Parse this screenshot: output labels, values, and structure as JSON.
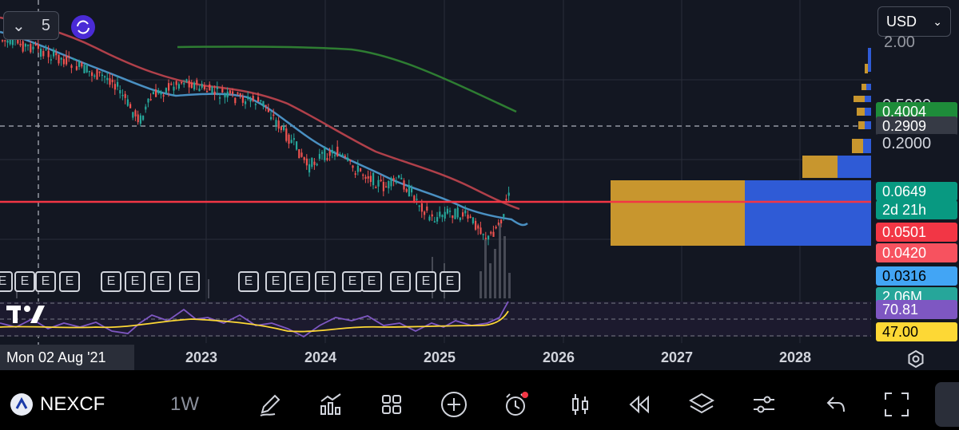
{
  "currency": {
    "label": "USD"
  },
  "indicators_collapse": {
    "count": "5"
  },
  "price_scale": {
    "top_label": "2.00",
    "labels": [
      {
        "text": "0.5000",
        "bg": "#131722",
        "color": "#d1d4dc"
      },
      {
        "text": "0.4004",
        "bg": "#1e8c3a",
        "color": "#ffffff"
      },
      {
        "text": "0.2909",
        "bg": "#363a45",
        "color": "#ffffff"
      },
      {
        "text": "0.2000",
        "bg": "#131722",
        "color": "#d1d4dc"
      },
      {
        "text": "0.0649",
        "bg": "#089981",
        "color": "#ffffff"
      },
      {
        "text": "2d 21h",
        "bg": "#089981",
        "color": "#ffffff"
      },
      {
        "text": "0.0501",
        "bg": "#f23645",
        "color": "#ffffff"
      },
      {
        "text": "0.0420",
        "bg": "#f7525f",
        "color": "#ffffff"
      },
      {
        "text": "0.0316",
        "bg": "#42a5f5",
        "color": "#000000"
      },
      {
        "text": "2.06M",
        "bg": "#26a69a",
        "color": "#ffffff"
      }
    ]
  },
  "rsi_scale": {
    "rsi_value": "70.81",
    "ma_value": "47.00",
    "rsi_color": "#7e57c2",
    "ma_color": "#fdd835"
  },
  "time_axis": {
    "cursor_date": "Mon 02 Aug '21",
    "years": [
      "2023",
      "2024",
      "2025",
      "2026",
      "2027",
      "2028"
    ]
  },
  "earnings_markers": {
    "label": "E",
    "count": 17
  },
  "toolbar": {
    "symbol": "NEXCF",
    "interval": "1W",
    "icons": [
      "draw-icon",
      "indicators-icon",
      "layout-icon",
      "add-icon",
      "alert-icon",
      "chart-type-icon",
      "replay-icon",
      "layers-icon",
      "settings-icon",
      "undo-icon",
      "fullscreen-icon"
    ]
  },
  "colors": {
    "background": "#131722",
    "price_line": "#f23645",
    "ma_fast": "#4a90c2",
    "ma_slow": "#b0404a",
    "ma_long": "#2e7d32",
    "candle_up": "#26a69a",
    "candle_down": "#ef5350"
  }
}
